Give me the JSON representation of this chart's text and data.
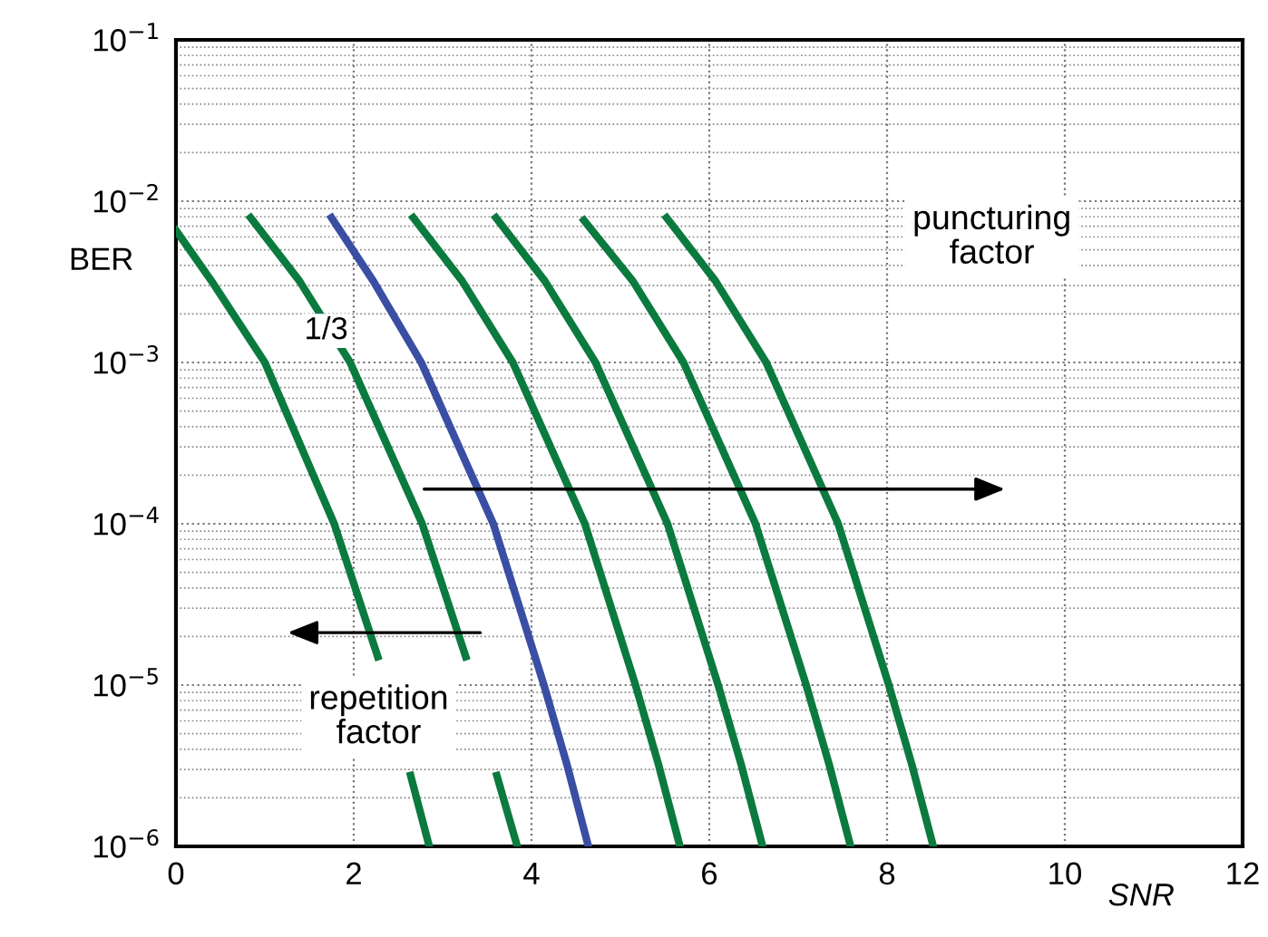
{
  "chart_data": {
    "type": "line",
    "xlabel": "SNR",
    "ylabel": "BER",
    "log": "y",
    "grid": true,
    "marker": "none",
    "line_style": "solid",
    "xlim": [
      0,
      12
    ],
    "xticks": [
      0,
      2,
      4,
      6,
      8,
      10,
      12
    ],
    "ylim": [
      1e-06,
      0.1
    ],
    "yticks": [
      {
        "value": 0.1,
        "label": "10$^{−1}$"
      },
      {
        "value": 0.01,
        "label": "10$^{−2}$"
      },
      {
        "value": 0.001,
        "label": "10$^{−3}$"
      },
      {
        "value": 0.0001,
        "label": "10$^{−4}$"
      },
      {
        "value": 1e-05,
        "label": "10$^{−5}$"
      },
      {
        "value": 1e-06,
        "label": "10$^{−6}$"
      }
    ],
    "annotations": [
      "puncturing factor",
      "repetition factor"
    ],
    "series": [
      {
        "color": "#0b7a3e",
        "x": [
          0,
          0.4,
          1.0,
          1.78,
          2.27,
          2.45,
          2.64,
          2.85
        ],
        "values": [
          0.0066,
          0.0032,
          0.001,
          0.0001,
          1.5e-05,
          null,
          2.75e-06,
          1e-06
        ]
      },
      {
        "color": "#0b7a3e",
        "x": [
          0.84,
          1.39,
          1.96,
          2.77,
          3.26,
          3.43,
          3.61,
          3.84
        ],
        "values": [
          0.0079,
          0.0032,
          0.001,
          0.0001,
          1.5e-05,
          null,
          2.75e-06,
          1e-06
        ]
      },
      {
        "name": "1/3",
        "color": "#3a4ea3",
        "x": [
          1.75,
          2.22,
          2.76,
          3.57,
          4.14,
          4.4,
          4.64
        ],
        "values": [
          0.0079,
          0.0032,
          0.001,
          0.0001,
          1e-05,
          3.2e-06,
          1e-06
        ]
      },
      {
        "color": "#0b7a3e",
        "x": [
          2.67,
          3.22,
          3.79,
          4.6,
          5.17,
          5.43,
          5.67
        ],
        "values": [
          0.0079,
          0.0032,
          0.001,
          0.0001,
          1e-05,
          3.2e-06,
          1e-06
        ]
      },
      {
        "color": "#0b7a3e",
        "x": [
          3.6,
          4.15,
          4.72,
          5.53,
          6.1,
          6.36,
          6.6
        ],
        "values": [
          0.0079,
          0.0032,
          0.001,
          0.0001,
          1e-05,
          3.2e-06,
          1e-06
        ]
      },
      {
        "color": "#0b7a3e",
        "x": [
          4.59,
          5.14,
          5.71,
          6.52,
          7.09,
          7.35,
          7.59
        ],
        "values": [
          0.0076,
          0.0032,
          0.001,
          0.0001,
          1e-05,
          3.2e-06,
          1e-06
        ]
      },
      {
        "color": "#0b7a3e",
        "x": [
          5.52,
          6.07,
          6.64,
          7.45,
          8.02,
          8.28,
          8.52
        ],
        "values": [
          0.0079,
          0.0032,
          0.001,
          0.0001,
          1e-05,
          3.2e-06,
          1e-06
        ]
      }
    ]
  }
}
